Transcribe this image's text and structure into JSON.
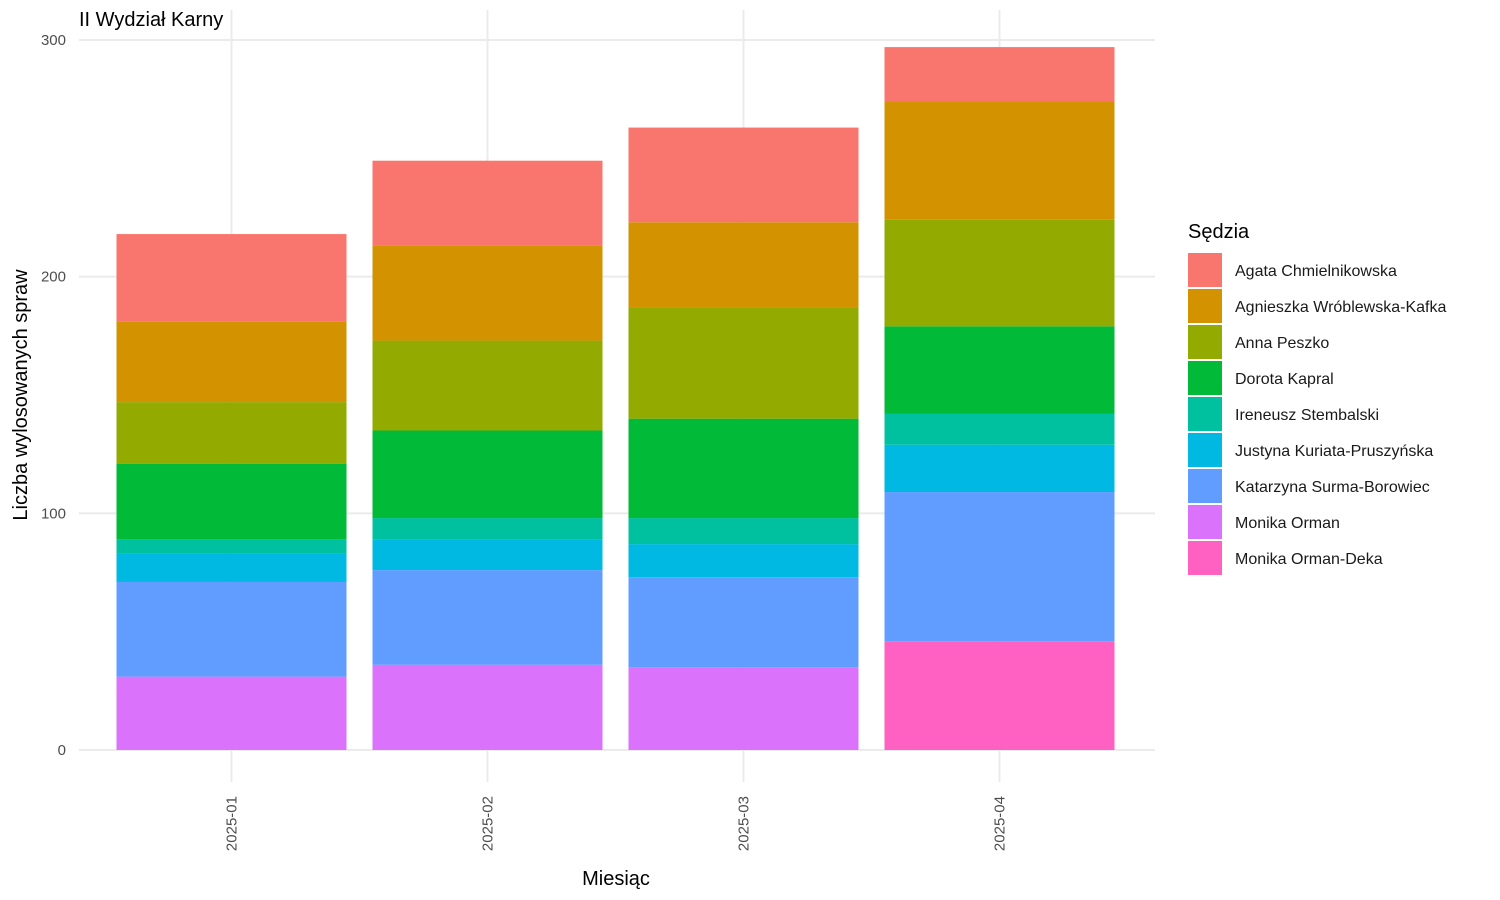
{
  "chart_data": {
    "type": "bar",
    "stacked": true,
    "title": "II Wydział Karny",
    "xlabel": "Miesiąc",
    "ylabel": "Liczba wylosowanych spraw",
    "categories": [
      "2025-01",
      "2025-02",
      "2025-03",
      "2025-04"
    ],
    "ylim": [
      0,
      300
    ],
    "yticks": [
      "0",
      "100",
      "200",
      "300"
    ],
    "grid": true,
    "legend": {
      "title": "Sędzia",
      "position": "right"
    },
    "series": [
      {
        "name": "Monika Orman-Deka",
        "color": "#FF61C3",
        "values": [
          0,
          0,
          0,
          46
        ]
      },
      {
        "name": "Monika Orman",
        "color": "#DB72FB",
        "values": [
          31,
          36,
          35,
          0
        ]
      },
      {
        "name": "Katarzyna Surma-Borowiec",
        "color": "#619CFF",
        "values": [
          40,
          40,
          38,
          63
        ]
      },
      {
        "name": "Justyna Kuriata-Pruszyńska",
        "color": "#00B9E3",
        "values": [
          12,
          13,
          14,
          20
        ]
      },
      {
        "name": "Ireneusz Stembalski",
        "color": "#00C19F",
        "values": [
          6,
          9,
          11,
          13
        ]
      },
      {
        "name": "Dorota Kapral",
        "color": "#00BA38",
        "values": [
          32,
          37,
          42,
          37
        ]
      },
      {
        "name": "Anna Peszko",
        "color": "#93AA00",
        "values": [
          26,
          38,
          47,
          45
        ]
      },
      {
        "name": "Agnieszka Wróblewska-Kafka",
        "color": "#D39200",
        "values": [
          34,
          40,
          36,
          50
        ]
      },
      {
        "name": "Agata Chmielnikowska",
        "color": "#F8766D",
        "values": [
          37,
          36,
          40,
          23
        ]
      }
    ],
    "legend_order": [
      "Agata Chmielnikowska",
      "Agnieszka Wróblewska-Kafka",
      "Anna Peszko",
      "Dorota Kapral",
      "Ireneusz Stembalski",
      "Justyna Kuriata-Pruszyńska",
      "Katarzyna Surma-Borowiec",
      "Monika Orman",
      "Monika Orman-Deka"
    ]
  }
}
